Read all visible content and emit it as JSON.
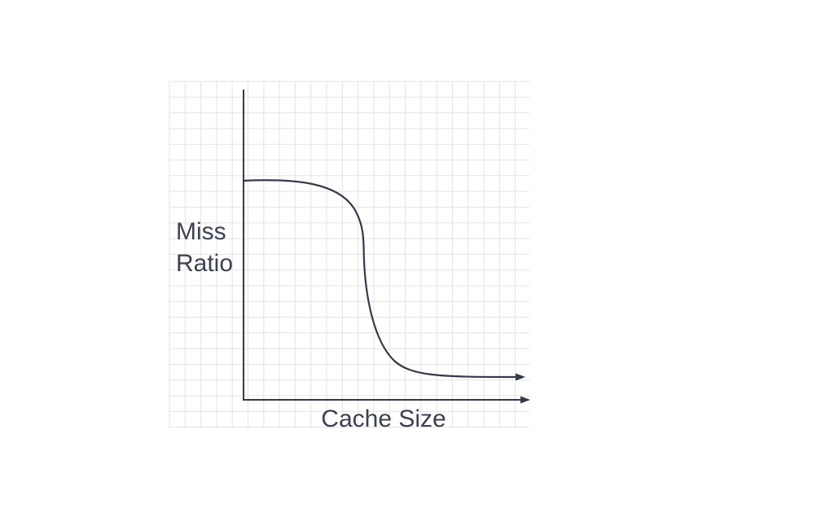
{
  "diagram": {
    "y_axis_label_lines": [
      "Miss",
      "Ratio"
    ],
    "x_axis_label": "Cache Size",
    "colors": {
      "background": "#ffffff",
      "grid": "#e3e3e3",
      "ink": "#353a4a",
      "label": "#3d4150"
    }
  }
}
